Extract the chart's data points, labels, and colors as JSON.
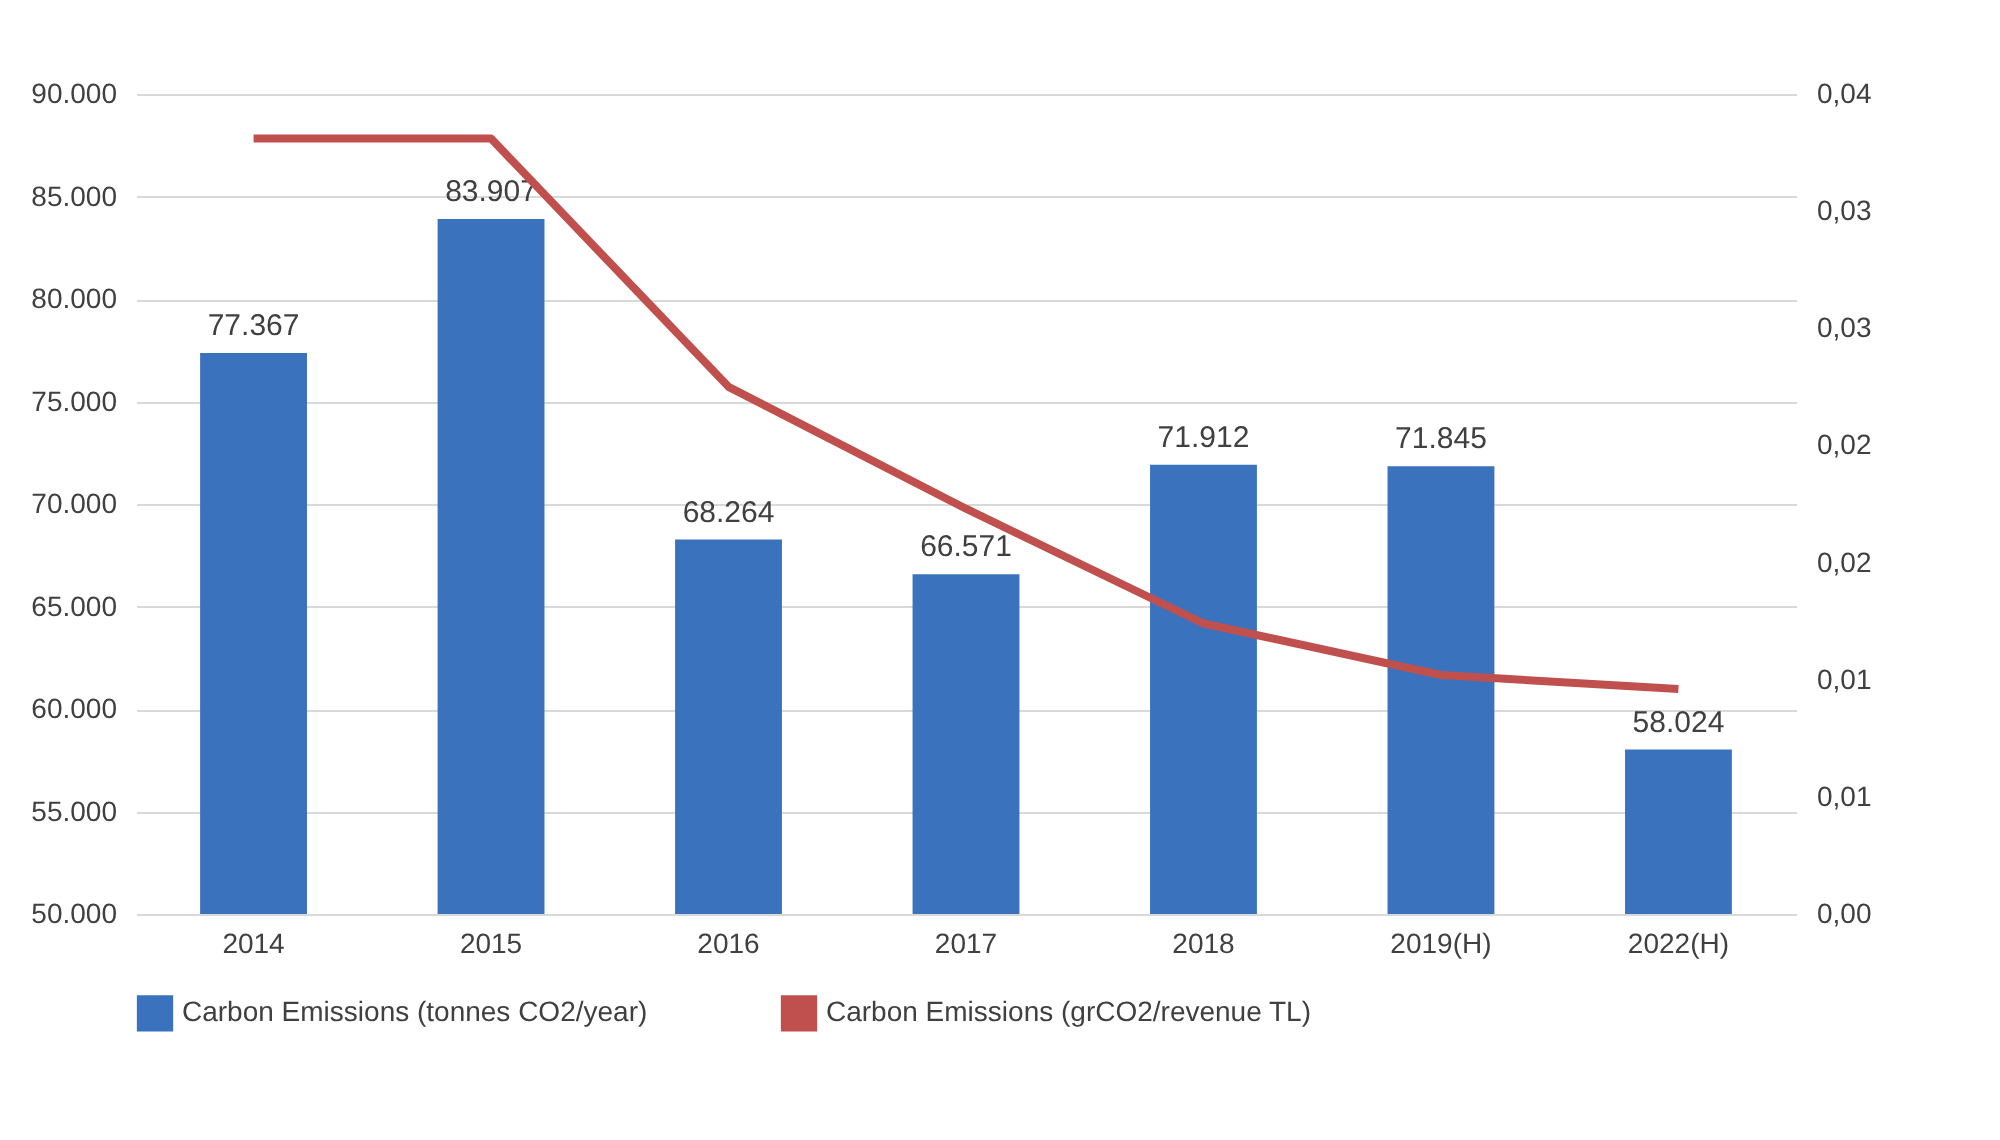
{
  "chart_data": {
    "type": "bar",
    "categories": [
      "2014",
      "2015",
      "2016",
      "2017",
      "2018",
      "2019(H)",
      "2022(H)"
    ],
    "series": [
      {
        "name": "Carbon Emissions (tonnes CO2/year)",
        "color": "#3b72bd",
        "values": [
          77367,
          83907,
          68264,
          66571,
          71912,
          71845,
          58024
        ],
        "value_labels": [
          "77.367",
          "83.907",
          "68.264",
          "66.571",
          "71.912",
          "71.845",
          "58.024"
        ]
      },
      {
        "name": "Carbon Emissions (grCO2/revenue TL)",
        "type": "line",
        "axis": "y2",
        "color": "#c0504d",
        "values": [
          0.0331,
          0.0331,
          0.0225,
          0.0173,
          0.0124,
          0.0102,
          0.0096
        ]
      }
    ],
    "ylim": [
      50000,
      90000
    ],
    "yticks": [
      {
        "value": 50000,
        "label": "50.000"
      },
      {
        "value": 55000,
        "label": "55.000"
      },
      {
        "value": 60000,
        "label": "60.000"
      },
      {
        "value": 65000,
        "label": "65.000"
      },
      {
        "value": 70000,
        "label": "70.000"
      },
      {
        "value": 75000,
        "label": "75.000"
      },
      {
        "value": 80000,
        "label": "80.000"
      },
      {
        "value": 85000,
        "label": "85.000"
      },
      {
        "value": 90000,
        "label": "90.000"
      }
    ],
    "y2lim": [
      0,
      0.035
    ],
    "y2ticks": [
      {
        "value": 0,
        "label": "0,00"
      },
      {
        "value": 0.005,
        "label": "0,01"
      },
      {
        "value": 0.01,
        "label": "0,01"
      },
      {
        "value": 0.015,
        "label": "0,02"
      },
      {
        "value": 0.02,
        "label": "0,02"
      },
      {
        "value": 0.025,
        "label": "0,03"
      },
      {
        "value": 0.03,
        "label": "0,03"
      },
      {
        "value": 0.035,
        "label": "0,04"
      }
    ],
    "grid": "y",
    "legend": "bottom",
    "marker": "none",
    "line_style": "solid"
  }
}
